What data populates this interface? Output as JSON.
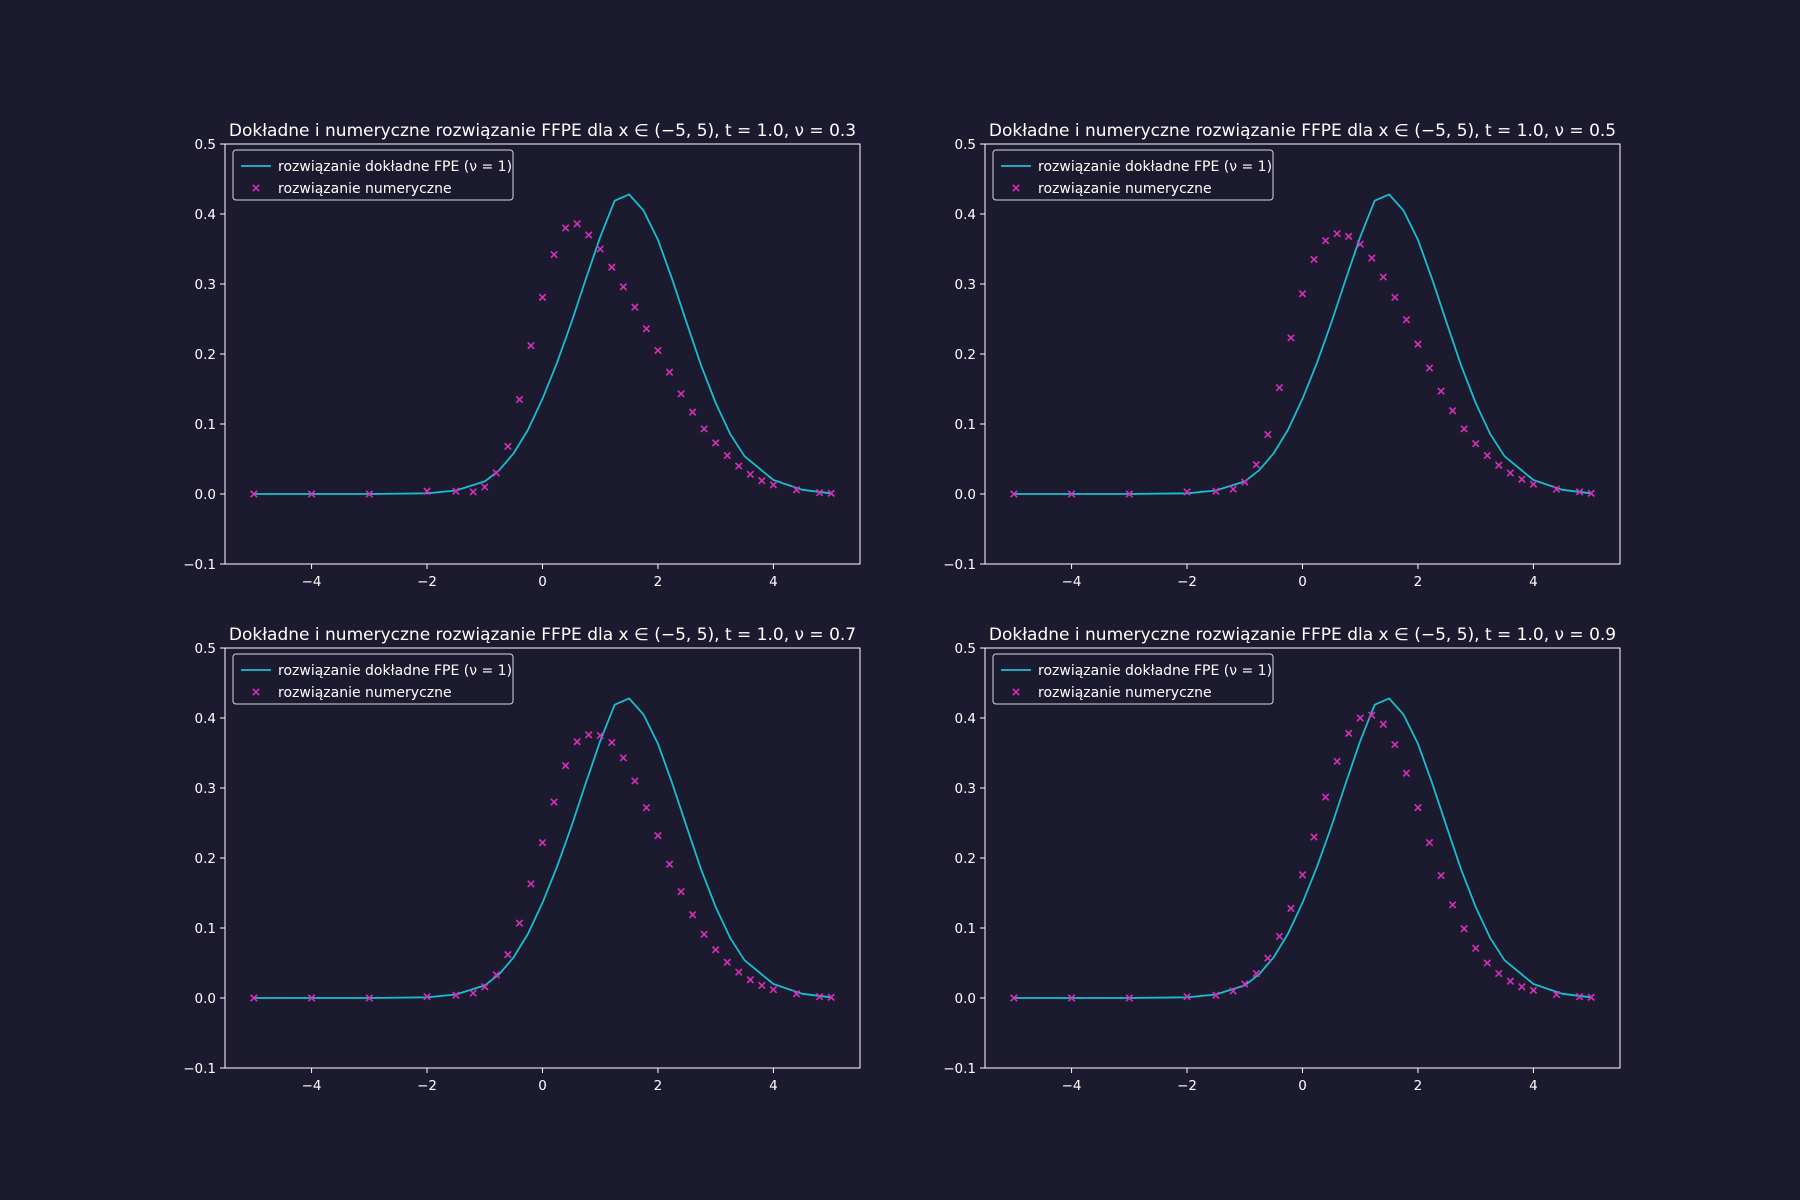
{
  "figure": {
    "background": "#1c1a2e",
    "line_color": "#17becf",
    "marker_color": "#d62fba"
  },
  "chart_data": [
    {
      "type": "line",
      "title_text": "Dokładne i numeryczne rozwiązanie FFPE dla x ∈ (−5, 5), t = 1.0, ν = 0.3",
      "nu": 0.3,
      "xlim": [
        -5.5,
        5.5
      ],
      "ylim": [
        -0.1,
        0.5
      ],
      "xticks": [
        "−4",
        "−2",
        "0",
        "2",
        "4"
      ],
      "yticks": [
        "−0.1",
        "0.0",
        "0.1",
        "0.2",
        "0.3",
        "0.4",
        "0.5"
      ],
      "legend": [
        "rozwiązanie dokładne FPE (ν = 1)",
        "rozwiązanie numeryczne"
      ],
      "legend_position": "upper-left",
      "series": [
        {
          "name": "rozwiązanie dokładne FPE (ν = 1)",
          "style": "line",
          "x": [
            -5.0,
            -4.0,
            -3.0,
            -2.0,
            -1.5,
            -1.0,
            -0.75,
            -0.5,
            -0.25,
            0.0,
            0.25,
            0.5,
            0.75,
            1.0,
            1.25,
            1.5,
            1.75,
            2.0,
            2.25,
            2.5,
            2.75,
            3.0,
            3.25,
            3.5,
            4.0,
            4.5,
            5.0
          ],
          "y": [
            0.0,
            0.0,
            0.0,
            0.001,
            0.005,
            0.018,
            0.034,
            0.058,
            0.092,
            0.136,
            0.187,
            0.245,
            0.307,
            0.367,
            0.419,
            0.428,
            0.405,
            0.363,
            0.306,
            0.244,
            0.183,
            0.13,
            0.086,
            0.054,
            0.02,
            0.006,
            0.001
          ]
        },
        {
          "name": "rozwiązanie numeryczne",
          "style": "scatter",
          "x": [
            -5.0,
            -4.0,
            -3.0,
            -2.0,
            -1.5,
            -1.2,
            -1.0,
            -0.8,
            -0.6,
            -0.4,
            -0.2,
            0.0,
            0.2,
            0.4,
            0.6,
            0.8,
            1.0,
            1.2,
            1.4,
            1.6,
            1.8,
            2.0,
            2.2,
            2.4,
            2.6,
            2.8,
            3.0,
            3.2,
            3.4,
            3.6,
            3.8,
            4.0,
            4.4,
            4.8,
            5.0
          ],
          "y": [
            0.0,
            0.0,
            0.0,
            0.004,
            0.004,
            0.003,
            0.01,
            0.03,
            0.068,
            0.135,
            0.212,
            0.281,
            0.342,
            0.38,
            0.386,
            0.37,
            0.35,
            0.324,
            0.296,
            0.267,
            0.236,
            0.205,
            0.174,
            0.143,
            0.117,
            0.093,
            0.073,
            0.055,
            0.04,
            0.028,
            0.019,
            0.013,
            0.006,
            0.002,
            0.001
          ]
        }
      ]
    },
    {
      "type": "line",
      "title_text": "Dokładne i numeryczne rozwiązanie FFPE dla x ∈ (−5, 5), t = 1.0, ν = 0.5",
      "nu": 0.5,
      "xlim": [
        -5.5,
        5.5
      ],
      "ylim": [
        -0.1,
        0.5
      ],
      "xticks": [
        "−4",
        "−2",
        "0",
        "2",
        "4"
      ],
      "yticks": [
        "−0.1",
        "0.0",
        "0.1",
        "0.2",
        "0.3",
        "0.4",
        "0.5"
      ],
      "legend": [
        "rozwiązanie dokładne FPE (ν = 1)",
        "rozwiązanie numeryczne"
      ],
      "legend_position": "upper-left",
      "series": [
        {
          "name": "rozwiązanie dokładne FPE (ν = 1)",
          "style": "line",
          "x": [
            -5.0,
            -4.0,
            -3.0,
            -2.0,
            -1.5,
            -1.0,
            -0.75,
            -0.5,
            -0.25,
            0.0,
            0.25,
            0.5,
            0.75,
            1.0,
            1.25,
            1.5,
            1.75,
            2.0,
            2.25,
            2.5,
            2.75,
            3.0,
            3.25,
            3.5,
            4.0,
            4.5,
            5.0
          ],
          "y": [
            0.0,
            0.0,
            0.0,
            0.001,
            0.005,
            0.018,
            0.034,
            0.058,
            0.092,
            0.136,
            0.187,
            0.245,
            0.307,
            0.367,
            0.419,
            0.428,
            0.405,
            0.363,
            0.306,
            0.244,
            0.183,
            0.13,
            0.086,
            0.054,
            0.02,
            0.006,
            0.001
          ]
        },
        {
          "name": "rozwiązanie numeryczne",
          "style": "scatter",
          "x": [
            -5.0,
            -4.0,
            -3.0,
            -2.0,
            -1.5,
            -1.2,
            -1.0,
            -0.8,
            -0.6,
            -0.4,
            -0.2,
            0.0,
            0.2,
            0.4,
            0.6,
            0.8,
            1.0,
            1.2,
            1.4,
            1.6,
            1.8,
            2.0,
            2.2,
            2.4,
            2.6,
            2.8,
            3.0,
            3.2,
            3.4,
            3.6,
            3.8,
            4.0,
            4.4,
            4.8,
            5.0
          ],
          "y": [
            0.0,
            0.0,
            0.0,
            0.003,
            0.004,
            0.007,
            0.017,
            0.042,
            0.085,
            0.152,
            0.223,
            0.286,
            0.335,
            0.362,
            0.372,
            0.368,
            0.357,
            0.337,
            0.31,
            0.281,
            0.249,
            0.214,
            0.18,
            0.147,
            0.119,
            0.093,
            0.072,
            0.055,
            0.041,
            0.03,
            0.021,
            0.014,
            0.007,
            0.003,
            0.001
          ]
        }
      ]
    },
    {
      "type": "line",
      "title_text": "Dokładne i numeryczne rozwiązanie FFPE dla x ∈ (−5, 5), t = 1.0, ν = 0.7",
      "nu": 0.7,
      "xlim": [
        -5.5,
        5.5
      ],
      "ylim": [
        -0.1,
        0.5
      ],
      "xticks": [
        "−4",
        "−2",
        "0",
        "2",
        "4"
      ],
      "yticks": [
        "−0.1",
        "0.0",
        "0.1",
        "0.2",
        "0.3",
        "0.4",
        "0.5"
      ],
      "legend": [
        "rozwiązanie dokładne FPE (ν = 1)",
        "rozwiązanie numeryczne"
      ],
      "legend_position": "upper-left",
      "series": [
        {
          "name": "rozwiązanie dokładne FPE (ν = 1)",
          "style": "line",
          "x": [
            -5.0,
            -4.0,
            -3.0,
            -2.0,
            -1.5,
            -1.0,
            -0.75,
            -0.5,
            -0.25,
            0.0,
            0.25,
            0.5,
            0.75,
            1.0,
            1.25,
            1.5,
            1.75,
            2.0,
            2.25,
            2.5,
            2.75,
            3.0,
            3.25,
            3.5,
            4.0,
            4.5,
            5.0
          ],
          "y": [
            0.0,
            0.0,
            0.0,
            0.001,
            0.005,
            0.018,
            0.034,
            0.058,
            0.092,
            0.136,
            0.187,
            0.245,
            0.307,
            0.367,
            0.419,
            0.428,
            0.405,
            0.363,
            0.306,
            0.244,
            0.183,
            0.13,
            0.086,
            0.054,
            0.02,
            0.006,
            0.001
          ]
        },
        {
          "name": "rozwiązanie numeryczne",
          "style": "scatter",
          "x": [
            -5.0,
            -4.0,
            -3.0,
            -2.0,
            -1.5,
            -1.2,
            -1.0,
            -0.8,
            -0.6,
            -0.4,
            -0.2,
            0.0,
            0.2,
            0.4,
            0.6,
            0.8,
            1.0,
            1.2,
            1.4,
            1.6,
            1.8,
            2.0,
            2.2,
            2.4,
            2.6,
            2.8,
            3.0,
            3.2,
            3.4,
            3.6,
            3.8,
            4.0,
            4.4,
            4.8,
            5.0
          ],
          "y": [
            0.0,
            0.0,
            0.0,
            0.002,
            0.004,
            0.007,
            0.016,
            0.033,
            0.062,
            0.107,
            0.163,
            0.222,
            0.28,
            0.332,
            0.366,
            0.376,
            0.375,
            0.365,
            0.343,
            0.31,
            0.272,
            0.232,
            0.191,
            0.152,
            0.119,
            0.091,
            0.069,
            0.051,
            0.037,
            0.026,
            0.018,
            0.012,
            0.006,
            0.002,
            0.001
          ]
        }
      ]
    },
    {
      "type": "line",
      "title_text": "Dokładne i numeryczne rozwiązanie FFPE dla x ∈ (−5, 5), t = 1.0, ν = 0.9",
      "nu": 0.9,
      "xlim": [
        -5.5,
        5.5
      ],
      "ylim": [
        -0.1,
        0.5
      ],
      "xticks": [
        "−4",
        "−2",
        "0",
        "2",
        "4"
      ],
      "yticks": [
        "−0.1",
        "0.0",
        "0.1",
        "0.2",
        "0.3",
        "0.4",
        "0.5"
      ],
      "legend": [
        "rozwiązanie dokładne FPE (ν = 1)",
        "rozwiązanie numeryczne"
      ],
      "legend_position": "upper-left",
      "series": [
        {
          "name": "rozwiązanie dokładne FPE (ν = 1)",
          "style": "line",
          "x": [
            -5.0,
            -4.0,
            -3.0,
            -2.0,
            -1.5,
            -1.0,
            -0.75,
            -0.5,
            -0.25,
            0.0,
            0.25,
            0.5,
            0.75,
            1.0,
            1.25,
            1.5,
            1.75,
            2.0,
            2.25,
            2.5,
            2.75,
            3.0,
            3.25,
            3.5,
            4.0,
            4.5,
            5.0
          ],
          "y": [
            0.0,
            0.0,
            0.0,
            0.001,
            0.005,
            0.018,
            0.034,
            0.058,
            0.092,
            0.136,
            0.187,
            0.245,
            0.307,
            0.367,
            0.419,
            0.428,
            0.405,
            0.363,
            0.306,
            0.244,
            0.183,
            0.13,
            0.086,
            0.054,
            0.02,
            0.006,
            0.001
          ]
        },
        {
          "name": "rozwiązanie numeryczne",
          "style": "scatter",
          "x": [
            -5.0,
            -4.0,
            -3.0,
            -2.0,
            -1.5,
            -1.2,
            -1.0,
            -0.8,
            -0.6,
            -0.4,
            -0.2,
            0.0,
            0.2,
            0.4,
            0.6,
            0.8,
            1.0,
            1.2,
            1.4,
            1.6,
            1.8,
            2.0,
            2.2,
            2.4,
            2.6,
            2.8,
            3.0,
            3.2,
            3.4,
            3.6,
            3.8,
            4.0,
            4.4,
            4.8,
            5.0
          ],
          "y": [
            0.0,
            0.0,
            0.0,
            0.002,
            0.004,
            0.01,
            0.02,
            0.035,
            0.057,
            0.088,
            0.128,
            0.176,
            0.23,
            0.287,
            0.338,
            0.378,
            0.4,
            0.404,
            0.391,
            0.362,
            0.321,
            0.272,
            0.222,
            0.175,
            0.133,
            0.099,
            0.071,
            0.05,
            0.035,
            0.024,
            0.016,
            0.011,
            0.005,
            0.002,
            0.001
          ]
        }
      ]
    }
  ]
}
